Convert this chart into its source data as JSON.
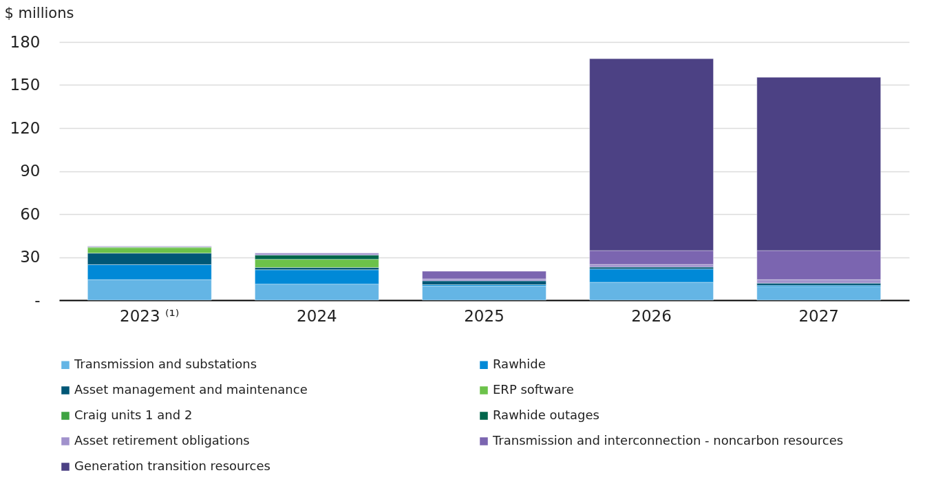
{
  "chart_data": {
    "type": "bar",
    "stacked": true,
    "ylabel": "$ millions",
    "categories": [
      "2023 ⁽¹⁾",
      "2024",
      "2025",
      "2026",
      "2027"
    ],
    "series": [
      {
        "name": "Transmission and substations",
        "color": "#64b5e5",
        "values": [
          14.3,
          11.2,
          9.8,
          12.5,
          9.4
        ]
      },
      {
        "name": "Rawhide",
        "color": "#0089d7",
        "values": [
          10.5,
          10.0,
          1.0,
          9.2,
          0.9
        ]
      },
      {
        "name": "Asset management and maintenance",
        "color": "#005776",
        "values": [
          8.0,
          1.6,
          2.7,
          1.4,
          1.6
        ]
      },
      {
        "name": "ERP software",
        "color": "#6cc24a",
        "values": [
          3.8,
          5.7,
          null,
          null,
          null
        ]
      },
      {
        "name": "Craig units 1 and 2",
        "color": "#3ea342",
        "values": [
          0.5,
          null,
          null,
          null,
          null
        ]
      },
      {
        "name": "Rawhide outages",
        "color": "#00664b",
        "values": [
          null,
          3.0,
          null,
          null,
          null
        ]
      },
      {
        "name": "Asset retirement obligations",
        "color": "#a192cc",
        "values": [
          0.6,
          1.4,
          1.3,
          1.8,
          2.4
        ]
      },
      {
        "name": "Transmission and interconnection - noncarbon resources",
        "color": "#7b65b0",
        "values": [
          null,
          null,
          5.4,
          9.7,
          20.3
        ]
      },
      {
        "name": "Generation transition resources",
        "color": "#4c4184",
        "values": [
          null,
          null,
          null,
          133.8,
          120.8
        ]
      }
    ],
    "ylim": [
      0,
      180
    ],
    "yticks": [
      {
        "value": 0,
        "label": "-"
      },
      30,
      60,
      90,
      120,
      150,
      180
    ],
    "grid": "y",
    "legend": "bottom"
  }
}
